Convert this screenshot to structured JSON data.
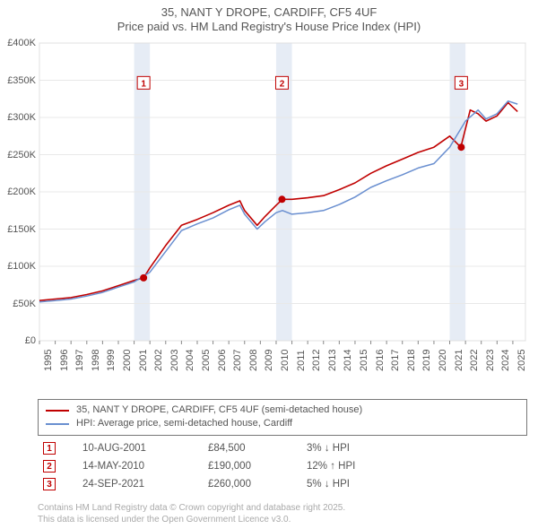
{
  "title": {
    "line1": "35, NANT Y DROPE, CARDIFF, CF5 4UF",
    "line2": "Price paid vs. HM Land Registry's House Price Index (HPI)",
    "fontsize": 13,
    "color": "#555555"
  },
  "chart": {
    "type": "line",
    "background_color": "#ffffff",
    "plot_bg_color": "#ffffff",
    "highlight_band_color": "#e6ecf5",
    "highlight_band_years": [
      2001,
      2010,
      2021
    ],
    "grid_color": "#e8e8e8",
    "xlim": [
      1995,
      2025.8
    ],
    "ylim": [
      0,
      400000
    ],
    "xtick_step": 1,
    "ytick_step": 50000,
    "ytick_format": "£K",
    "xticks": [
      1995,
      1996,
      1997,
      1998,
      1999,
      2000,
      2001,
      2002,
      2003,
      2004,
      2005,
      2006,
      2007,
      2008,
      2009,
      2010,
      2011,
      2012,
      2013,
      2014,
      2015,
      2016,
      2017,
      2018,
      2019,
      2020,
      2021,
      2022,
      2023,
      2024,
      2025
    ],
    "yticks": [
      0,
      50000,
      100000,
      150000,
      200000,
      250000,
      300000,
      350000,
      400000
    ],
    "series": [
      {
        "name": "35, NANT Y DROPE, CARDIFF, CF5 4UF (semi-detached house)",
        "color": "#c00000",
        "line_width": 1.6,
        "points_x": [
          1995,
          1996,
          1997,
          1998,
          1999,
          2000,
          2001,
          2001.6,
          2002,
          2003,
          2004,
          2005,
          2006,
          2007,
          2007.7,
          2008,
          2008.8,
          2009.3,
          2010,
          2010.4,
          2011,
          2012,
          2013,
          2014,
          2015,
          2016,
          2017,
          2018,
          2019,
          2020,
          2021,
          2021.7,
          2022.3,
          2022.8,
          2023.3,
          2024,
          2024.7,
          2025.3
        ],
        "points_y": [
          54000,
          56000,
          58000,
          62000,
          67000,
          74000,
          81000,
          84500,
          98000,
          128000,
          155000,
          163000,
          172000,
          182000,
          188000,
          175000,
          155000,
          167000,
          182000,
          190000,
          190000,
          192000,
          195000,
          203000,
          212000,
          225000,
          235000,
          244000,
          253000,
          260000,
          275000,
          260000,
          310000,
          305000,
          295000,
          302000,
          320000,
          308000
        ]
      },
      {
        "name": "HPI: Average price, semi-detached house, Cardiff",
        "color": "#6a8fd0",
        "line_width": 1.5,
        "points_x": [
          1995,
          1996,
          1997,
          1998,
          1999,
          2000,
          2001,
          2002,
          2003,
          2004,
          2005,
          2006,
          2007,
          2007.7,
          2008,
          2008.8,
          2009.3,
          2010,
          2010.4,
          2011,
          2012,
          2013,
          2014,
          2015,
          2016,
          2017,
          2018,
          2019,
          2020,
          2021,
          2022,
          2022.8,
          2023.3,
          2024,
          2024.7,
          2025.3
        ],
        "points_y": [
          52000,
          54000,
          56000,
          60000,
          65000,
          72000,
          79000,
          92000,
          120000,
          148000,
          157000,
          165000,
          176000,
          182000,
          170000,
          150000,
          160000,
          172000,
          175000,
          170000,
          172000,
          175000,
          183000,
          193000,
          206000,
          215000,
          223000,
          232000,
          238000,
          260000,
          295000,
          310000,
          298000,
          305000,
          322000,
          318000
        ]
      }
    ],
    "event_markers": [
      {
        "n": "1",
        "year": 2001.6,
        "value": 84500,
        "color": "#c00000",
        "label_y": 355000
      },
      {
        "n": "2",
        "year": 2010.37,
        "value": 190000,
        "color": "#c00000",
        "label_y": 355000
      },
      {
        "n": "3",
        "year": 2021.73,
        "value": 260000,
        "color": "#c00000",
        "label_y": 355000
      }
    ]
  },
  "legend": {
    "items": [
      {
        "color": "#c00000",
        "label": "35, NANT Y DROPE, CARDIFF, CF5 4UF (semi-detached house)"
      },
      {
        "color": "#6a8fd0",
        "label": "HPI: Average price, semi-detached house, Cardiff"
      }
    ]
  },
  "transactions": [
    {
      "n": "1",
      "color": "#c00000",
      "date": "10-AUG-2001",
      "price": "£84,500",
      "delta": "3% ↓ HPI"
    },
    {
      "n": "2",
      "color": "#c00000",
      "date": "14-MAY-2010",
      "price": "£190,000",
      "delta": "12% ↑ HPI"
    },
    {
      "n": "3",
      "color": "#c00000",
      "date": "24-SEP-2021",
      "price": "£260,000",
      "delta": "5% ↓ HPI"
    }
  ],
  "footer": {
    "line1": "Contains HM Land Registry data © Crown copyright and database right 2025.",
    "line2": "This data is licensed under the Open Government Licence v3.0.",
    "color": "#aaaaaa",
    "fontsize": 10
  }
}
